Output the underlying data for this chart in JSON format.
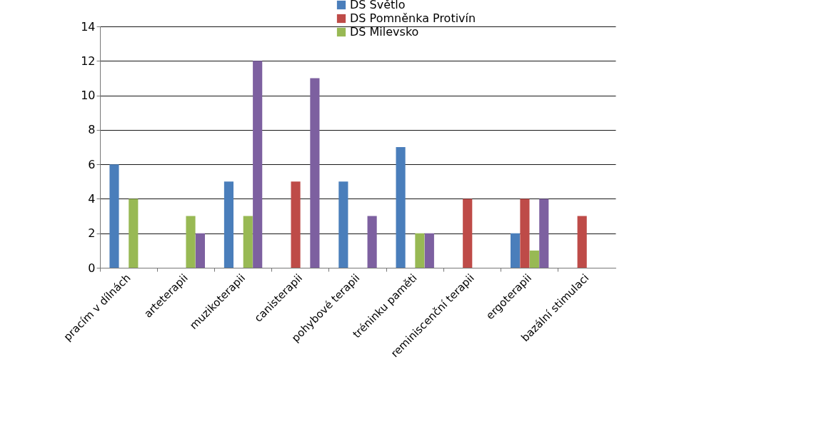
{
  "chart_data": {
    "type": "bar",
    "categories": [
      "pracím v dílnách",
      "arteterapii",
      "muzikoterapii",
      "canisterapii",
      "pohybové terapii",
      "tréninku paměti",
      "reminiscenční terapii",
      "ergoterapii",
      "bazální stimulaci"
    ],
    "series": [
      {
        "name": "DS Světlo",
        "color": "#4a7ebb",
        "values": [
          6,
          null,
          5,
          null,
          5,
          7,
          null,
          2,
          null
        ]
      },
      {
        "name": "DS Pomněnka Protivín",
        "color": "#be4b48",
        "values": [
          null,
          null,
          null,
          5,
          null,
          null,
          4,
          4,
          3
        ]
      },
      {
        "name": "DS Milevsko",
        "color": "#98b954",
        "values": [
          4,
          3,
          3,
          null,
          null,
          2,
          null,
          1,
          null
        ]
      },
      {
        "color": "#7d60a0",
        "values": [
          null,
          2,
          12,
          11,
          3,
          2,
          null,
          4,
          null
        ]
      }
    ],
    "ylim": [
      0,
      14
    ],
    "yticks": [
      0,
      2,
      4,
      6,
      8,
      10,
      12,
      14
    ],
    "grid": "y",
    "legend": "top right"
  }
}
